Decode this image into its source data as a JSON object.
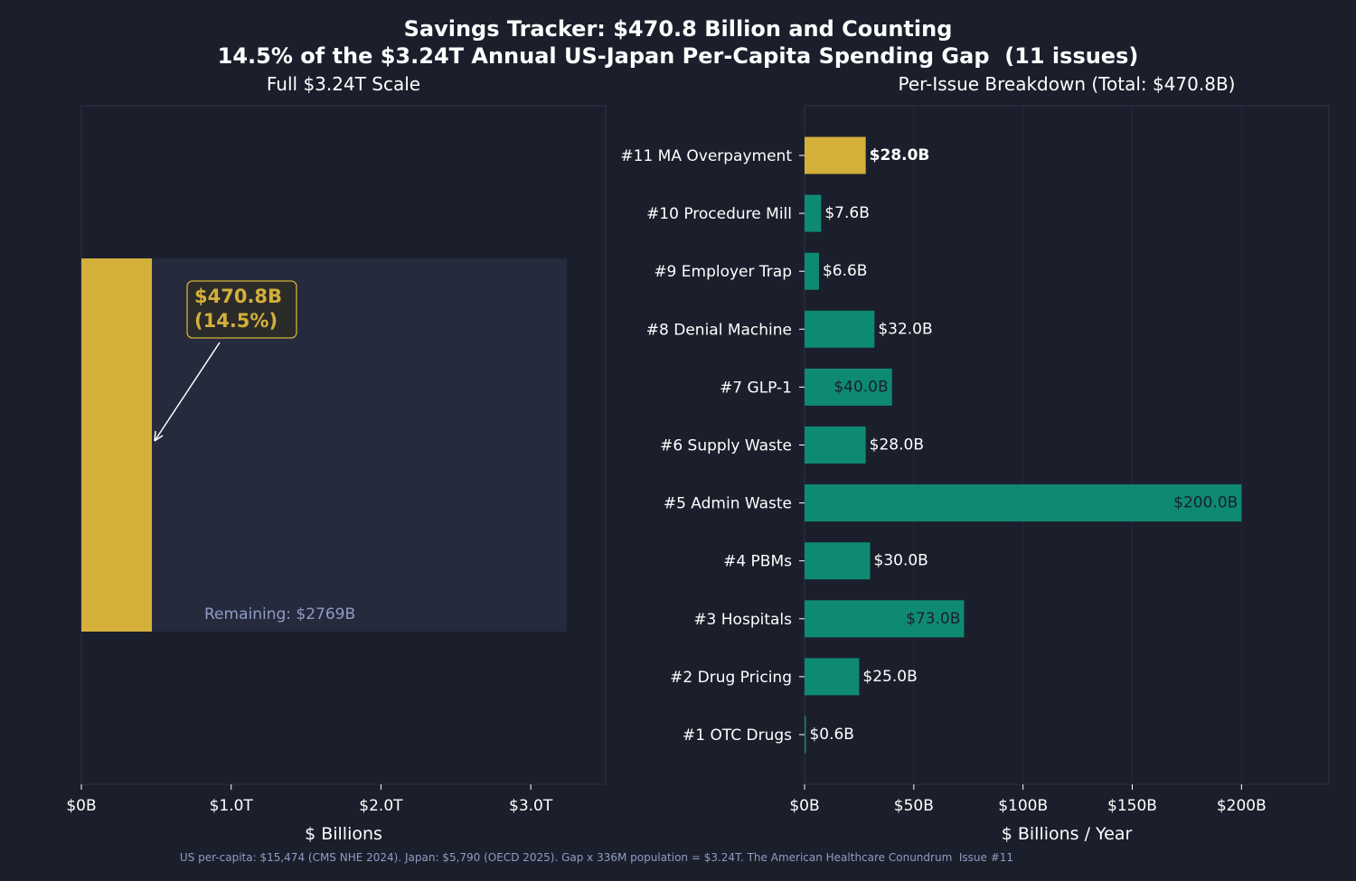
{
  "title": "Savings Tracker: $470.8 Billion and Counting",
  "subtitle": "14.5% of the $3.24T Annual US-Japan Per-Capita Spending Gap  (11 issues)",
  "footnote": "US per-capita: $15,474 (CMS NHE 2024). Japan: $5,790 (OECD 2025). Gap x 336M population = $3.24T. The American Healthcare Conundrum  Issue #11",
  "colors": {
    "background": "#1b1f2c",
    "gold": "#d4b03a",
    "teal": "#0e8a72",
    "remaining": "#252a3d",
    "muted": "#8f9cc2",
    "axis": "#2d3242"
  },
  "chart_data": [
    {
      "type": "bar",
      "title": "Full $3.24T Scale",
      "xlabel": "$ Billions",
      "xlim": [
        0,
        3500
      ],
      "xticks": [
        {
          "value": 0,
          "label": "$0B"
        },
        {
          "value": 1000,
          "label": "$1.0T"
        },
        {
          "value": 2000,
          "label": "$2.0T"
        },
        {
          "value": 3000,
          "label": "$3.0T"
        }
      ],
      "total_gap": 3240,
      "saved": 470.8,
      "remaining": 2769,
      "annotation_value": "$470.8B",
      "annotation_pct": "(14.5%)",
      "remaining_label": "Remaining: $2769B"
    },
    {
      "type": "bar",
      "orientation": "horizontal",
      "title": "Per-Issue Breakdown (Total: $470.8B)",
      "xlabel": "$ Billions / Year",
      "xlim": [
        0,
        240
      ],
      "grid": true,
      "xticks": [
        {
          "value": 0,
          "label": "$0B"
        },
        {
          "value": 50,
          "label": "$50B"
        },
        {
          "value": 100,
          "label": "$100B"
        },
        {
          "value": 150,
          "label": "$150B"
        },
        {
          "value": 200,
          "label": "$200B"
        }
      ],
      "bars": [
        {
          "label": "#11  MA Overpayment",
          "value": 28.0,
          "value_label": "$28.0B",
          "highlight": true
        },
        {
          "label": "#10  Procedure Mill",
          "value": 7.6,
          "value_label": "$7.6B"
        },
        {
          "label": "#9  Employer Trap",
          "value": 6.6,
          "value_label": "$6.6B"
        },
        {
          "label": "#8  Denial Machine",
          "value": 32.0,
          "value_label": "$32.0B"
        },
        {
          "label": "#7  GLP-1",
          "value": 40.0,
          "value_label": "$40.0B",
          "inside": true
        },
        {
          "label": "#6  Supply Waste",
          "value": 28.0,
          "value_label": "$28.0B"
        },
        {
          "label": "#5  Admin Waste",
          "value": 200.0,
          "value_label": "$200.0B",
          "inside": true
        },
        {
          "label": "#4  PBMs",
          "value": 30.0,
          "value_label": "$30.0B"
        },
        {
          "label": "#3  Hospitals",
          "value": 73.0,
          "value_label": "$73.0B",
          "inside": true
        },
        {
          "label": "#2  Drug Pricing",
          "value": 25.0,
          "value_label": "$25.0B"
        },
        {
          "label": "#1  OTC Drugs",
          "value": 0.6,
          "value_label": "$0.6B"
        }
      ]
    }
  ]
}
